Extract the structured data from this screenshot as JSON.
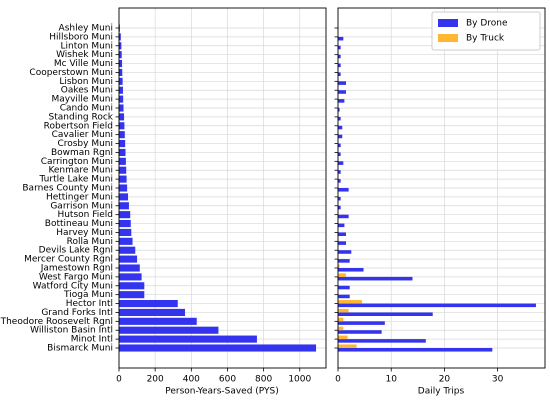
{
  "chart_data": [
    {
      "type": "barh",
      "xlabel": "Person-Years-Saved (PYS)",
      "categories": [
        "Ashley Muni",
        "Hillsboro Muni",
        "Linton Muni",
        "Wishek Muni",
        "Mc Ville Muni",
        "Cooperstown Muni",
        "Lisbon Muni",
        "Oakes Muni",
        "Mayville Muni",
        "Cando Muni",
        "Standing Rock",
        "Robertson Field",
        "Cavalier Muni",
        "Crosby Muni",
        "Bowman Rgnl",
        "Carrington Muni",
        "Kenmare Muni",
        "Turtle Lake Muni",
        "Barnes County Muni",
        "Hettinger Muni",
        "Garrison Muni",
        "Hutson Field",
        "Bottineau Muni",
        "Harvey Muni",
        "Rolla Muni",
        "Devils Lake Rgnl",
        "Mercer County Rgnl",
        "Jamestown Rgnl",
        "West Fargo Muni",
        "Watford City Muni",
        "Tioga Muni",
        "Hector Intl",
        "Grand Forks Intl",
        "Theodore Roosevelt Rgnl",
        "Williston Basin Intl",
        "Minot Intl",
        "Bismarck Muni"
      ],
      "values": [
        5,
        10,
        13,
        15,
        17,
        18,
        20,
        22,
        23,
        25,
        28,
        30,
        32,
        34,
        36,
        38,
        40,
        42,
        45,
        50,
        55,
        62,
        65,
        68,
        75,
        90,
        100,
        115,
        125,
        140,
        140,
        325,
        365,
        430,
        550,
        763,
        1090
      ],
      "color": "#3434ee",
      "xlim": [
        0,
        1145
      ],
      "xticks": [
        0,
        200,
        400,
        600,
        800,
        1000
      ],
      "grid": true
    },
    {
      "type": "grouped-barh",
      "xlabel": "Daily Trips",
      "legend": "upper right",
      "series": [
        {
          "name": "By Drone",
          "color": "#3434ee",
          "values": [
            0,
            1,
            0.5,
            0.5,
            0.5,
            0.5,
            1.5,
            1.5,
            1.2,
            0.3,
            0.5,
            0.8,
            0.8,
            0.5,
            0.5,
            1,
            0.5,
            0.5,
            2,
            0.5,
            0.5,
            2,
            1.2,
            1.5,
            1.5,
            2.5,
            2.2,
            4.8,
            14,
            2.2,
            2.2,
            37.2,
            17.8,
            8.8,
            8.2,
            16.5,
            29
          ]
        },
        {
          "name": "By Truck",
          "color": "#ffb733",
          "values": [
            0,
            0,
            0,
            0,
            0,
            0,
            0,
            0,
            0,
            0,
            0,
            0,
            0,
            0,
            0,
            0,
            0,
            0,
            0,
            0,
            0,
            0,
            0,
            0,
            0,
            0,
            0,
            0.3,
            1.5,
            0,
            0,
            4.5,
            2,
            1,
            1,
            1.8,
            3.5
          ]
        }
      ],
      "xlim": [
        0,
        38.9
      ],
      "xticks": [
        0,
        10,
        20,
        30
      ],
      "grid": true
    }
  ]
}
